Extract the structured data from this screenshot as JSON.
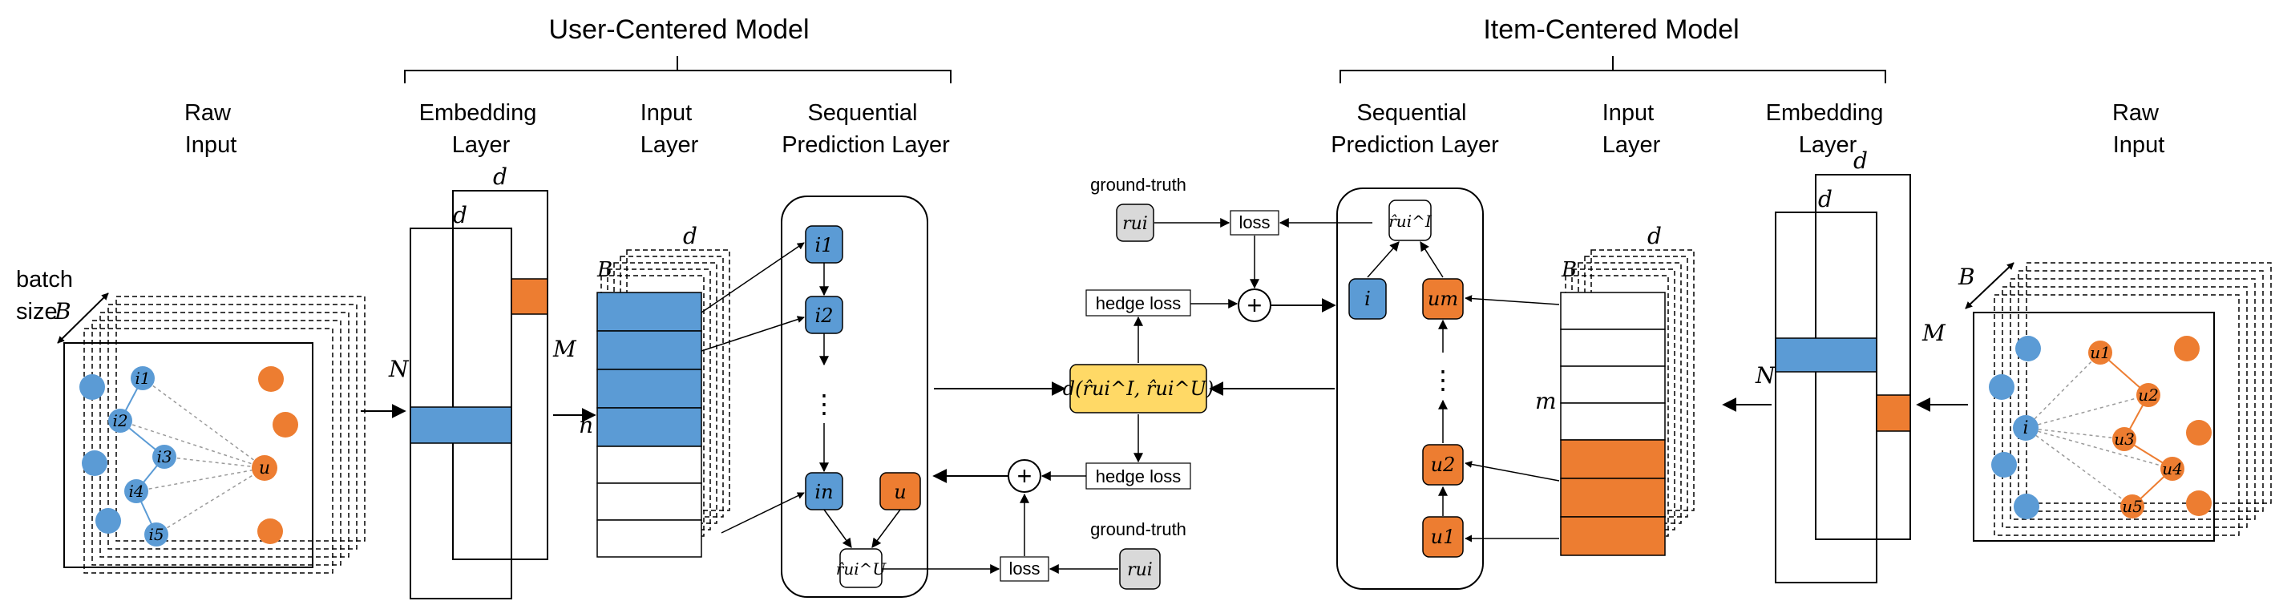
{
  "titles": {
    "user_model": "User-Centered Model",
    "item_model": "Item-Centered Model"
  },
  "user_side": {
    "raw_input": [
      "Raw",
      "Input"
    ],
    "embedding_layer": [
      "Embedding",
      "Layer"
    ],
    "input_layer": [
      "Input",
      "Layer"
    ],
    "sequential_layer": [
      "Sequential",
      "Prediction Layer"
    ],
    "batch_size": [
      "batch",
      "size"
    ],
    "batch_symbol": "B",
    "dim_symbol": "d",
    "n_symbol": "N",
    "m_symbol": "M",
    "seq_len_symbol": "n",
    "graph_items": [
      "i1",
      "i2",
      "i3",
      "i4",
      "i5"
    ],
    "graph_user": "u",
    "seq_nodes": [
      "i1",
      "i2",
      "in"
    ],
    "seq_dots": "⋮",
    "user_node": "u",
    "prediction": "r̂ui^U",
    "loss": "loss",
    "hedge_loss": "hedge loss",
    "ground_truth": "ground-truth",
    "truth_value": "rui"
  },
  "item_side": {
    "raw_input": [
      "Raw",
      "Input"
    ],
    "embedding_layer": [
      "Embedding",
      "Layer"
    ],
    "input_layer": [
      "Input",
      "Layer"
    ],
    "sequential_layer": [
      "Sequential",
      "Prediction Layer"
    ],
    "batch_symbol": "B",
    "dim_symbol": "d",
    "n_symbol": "N",
    "m_symbol": "M",
    "seq_len_symbol": "m",
    "graph_item": "i",
    "graph_users": [
      "u1",
      "u2",
      "u3",
      "u4",
      "u5"
    ],
    "seq_nodes": [
      "u1",
      "u2",
      "um"
    ],
    "seq_dots": "⋮",
    "item_node": "i",
    "prediction": "r̂ui^I",
    "loss": "loss",
    "hedge_loss": "hedge loss",
    "ground_truth": "ground-truth",
    "truth_value": "rui"
  },
  "center": {
    "distance": "d(r̂ui^I, r̂ui^U)",
    "plus": "+"
  },
  "colors": {
    "blue": "#5B9BD5",
    "orange": "#ED7D31",
    "yellow": "#FFD966",
    "gray": "#D9D9D9",
    "dash": "#9a9a9a"
  }
}
